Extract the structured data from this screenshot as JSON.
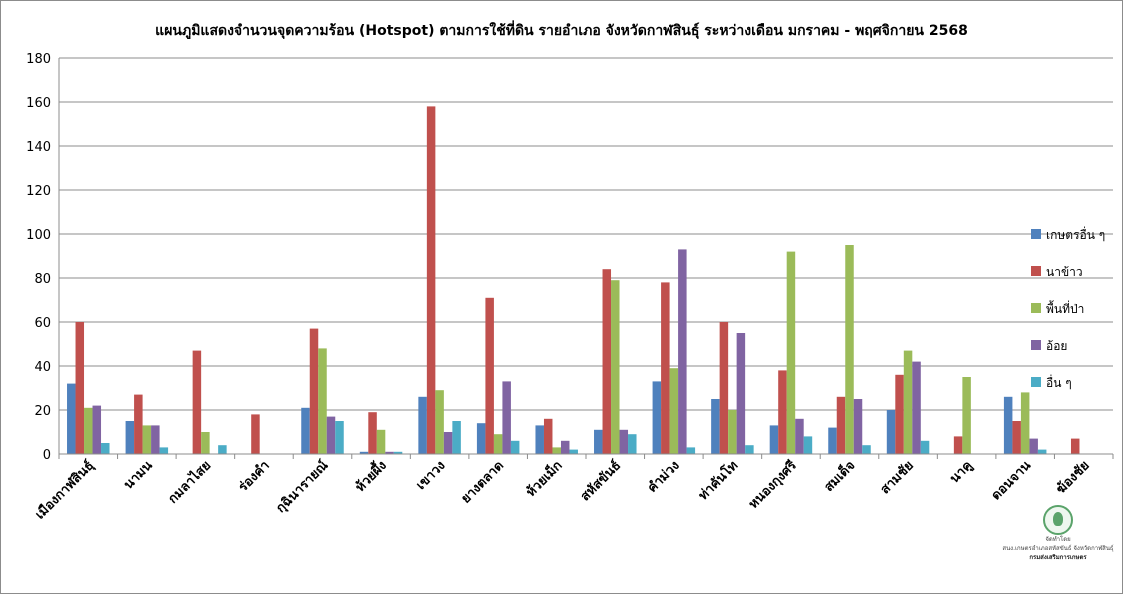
{
  "chart_data": {
    "type": "bar",
    "title": "แผนภูมิแสดงจำนวนจุดความร้อน (Hotspot) ตามการใช้ที่ดิน รายอำเภอ จังหวัดกาฬสินธุ์ ระหว่างเดือน มกราคม - พฤศจิกายน 2568",
    "xlabel": "",
    "ylabel": "",
    "ylim": [
      0,
      180
    ],
    "yticks": [
      0,
      20,
      40,
      60,
      80,
      100,
      120,
      140,
      160,
      180
    ],
    "grid": true,
    "legend_position": "right",
    "categories": [
      "เมืองกาฬสินธุ์",
      "นามน",
      "กมลาไสย",
      "ร่องคำ",
      "กุฉินารายณ์",
      "ห้วยผึ้ง",
      "เขาวง",
      "ยางตลาด",
      "ห้วยเม็ก",
      "สหัสขันธ์",
      "คำม่วง",
      "ท่าคันโท",
      "หนองกุงศรี",
      "สมเด็จ",
      "สามชัย",
      "นาคู",
      "ดอนจาน",
      "ฆ้องชัย"
    ],
    "series": [
      {
        "name": "เกษตรอื่น ๆ",
        "color": "#4f81bd",
        "values": [
          32,
          15,
          0,
          0,
          21,
          1,
          26,
          14,
          13,
          11,
          33,
          25,
          13,
          12,
          20,
          0,
          26,
          0
        ]
      },
      {
        "name": "นาข้าว",
        "color": "#c0504d",
        "values": [
          60,
          27,
          47,
          18,
          57,
          19,
          158,
          71,
          16,
          84,
          78,
          60,
          38,
          26,
          36,
          8,
          15,
          7
        ]
      },
      {
        "name": "พื้นที่ป่า",
        "color": "#9bbb59",
        "values": [
          21,
          13,
          10,
          0,
          48,
          11,
          29,
          9,
          3,
          79,
          39,
          20,
          92,
          95,
          47,
          35,
          28,
          0
        ]
      },
      {
        "name": "อ้อย",
        "color": "#8064a2",
        "values": [
          22,
          13,
          0,
          0,
          17,
          1,
          10,
          33,
          6,
          11,
          93,
          55,
          16,
          25,
          42,
          0,
          7,
          0
        ]
      },
      {
        "name": "อื่น ๆ",
        "color": "#4bacc6",
        "values": [
          5,
          3,
          4,
          0,
          15,
          1,
          15,
          6,
          2,
          9,
          3,
          4,
          8,
          4,
          6,
          0,
          2,
          0
        ]
      }
    ]
  },
  "credit": {
    "logo_text": "จัดทำโดย",
    "line1": "สนง.เกษตรอำเภอสหัสขันธ์ จังหวัดกาฬสินธุ์",
    "line2": "กรมส่งเสริมการเกษตร"
  }
}
